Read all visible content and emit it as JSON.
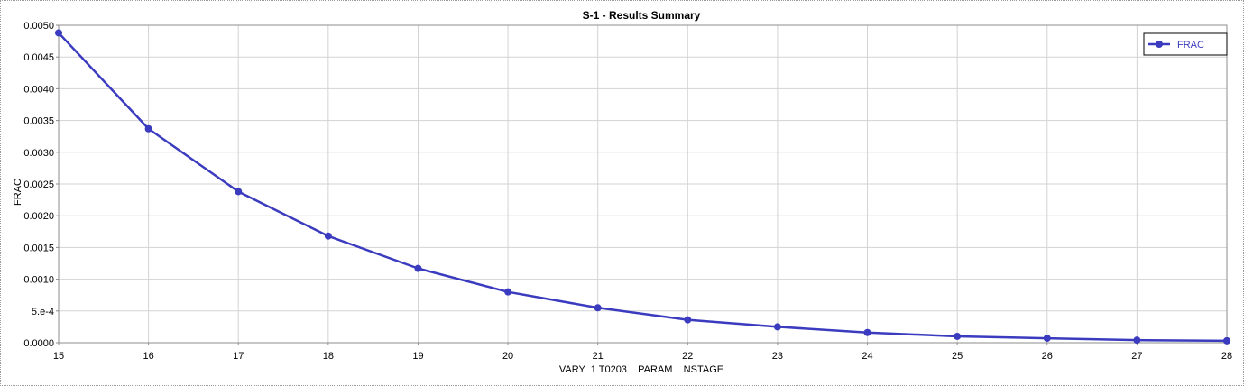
{
  "chart_data": {
    "type": "line",
    "title": "S-1 - Results Summary",
    "xlabel": "VARY  1 T0203    PARAM    NSTAGE",
    "ylabel": "FRAC",
    "x": [
      15,
      16,
      17,
      18,
      19,
      20,
      21,
      22,
      23,
      24,
      25,
      26,
      27,
      28
    ],
    "xlim": [
      15,
      28
    ],
    "ylim": [
      0,
      0.005
    ],
    "x_ticks": [
      "15",
      "16",
      "17",
      "18",
      "19",
      "20",
      "21",
      "22",
      "23",
      "24",
      "25",
      "26",
      "27",
      "28"
    ],
    "y_ticks": [
      {
        "value": 0,
        "label": "0.0000"
      },
      {
        "value": 0.0005,
        "label": "5.e-4"
      },
      {
        "value": 0.001,
        "label": "0.0010"
      },
      {
        "value": 0.0015,
        "label": "0.0015"
      },
      {
        "value": 0.002,
        "label": "0.0020"
      },
      {
        "value": 0.0025,
        "label": "0.0025"
      },
      {
        "value": 0.003,
        "label": "0.0030"
      },
      {
        "value": 0.0035,
        "label": "0.0035"
      },
      {
        "value": 0.004,
        "label": "0.0040"
      },
      {
        "value": 0.0045,
        "label": "0.0045"
      },
      {
        "value": 0.005,
        "label": "0.0050"
      }
    ],
    "series": [
      {
        "name": "FRAC",
        "color": "#3b3bbf",
        "values": [
          0.00488,
          0.00337,
          0.00238,
          0.00168,
          0.00117,
          0.0008,
          0.00055,
          0.00036,
          0.00025,
          0.00016,
          0.0001,
          7e-05,
          4e-05,
          3e-05
        ]
      }
    ],
    "grid": true,
    "legend_position": "top-right"
  }
}
